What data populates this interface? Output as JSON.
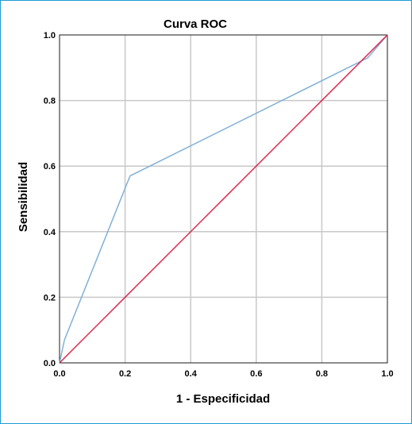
{
  "chart_data": {
    "type": "line",
    "title": "Curva ROC",
    "xlabel": "1 - Especificidad",
    "ylabel": "Sensibilidad",
    "xlim": [
      0.0,
      1.0
    ],
    "ylim": [
      0.0,
      1.0
    ],
    "x_ticks": [
      "0.0",
      "0.2",
      "0.4",
      "0.6",
      "0.8",
      "1.0"
    ],
    "y_ticks": [
      "0.0",
      "0.2",
      "0.4",
      "0.6",
      "0.8",
      "1.0"
    ],
    "grid": true,
    "legend": "none",
    "series": [
      {
        "color": "#7fb0d8",
        "x": [
          0.0,
          0.015,
          0.215,
          0.94,
          1.0
        ],
        "y": [
          0.0,
          0.07,
          0.57,
          0.93,
          1.0
        ]
      },
      {
        "color": "#d9264b",
        "x": [
          0.0,
          1.0
        ],
        "y": [
          0.0,
          1.0
        ]
      }
    ]
  }
}
